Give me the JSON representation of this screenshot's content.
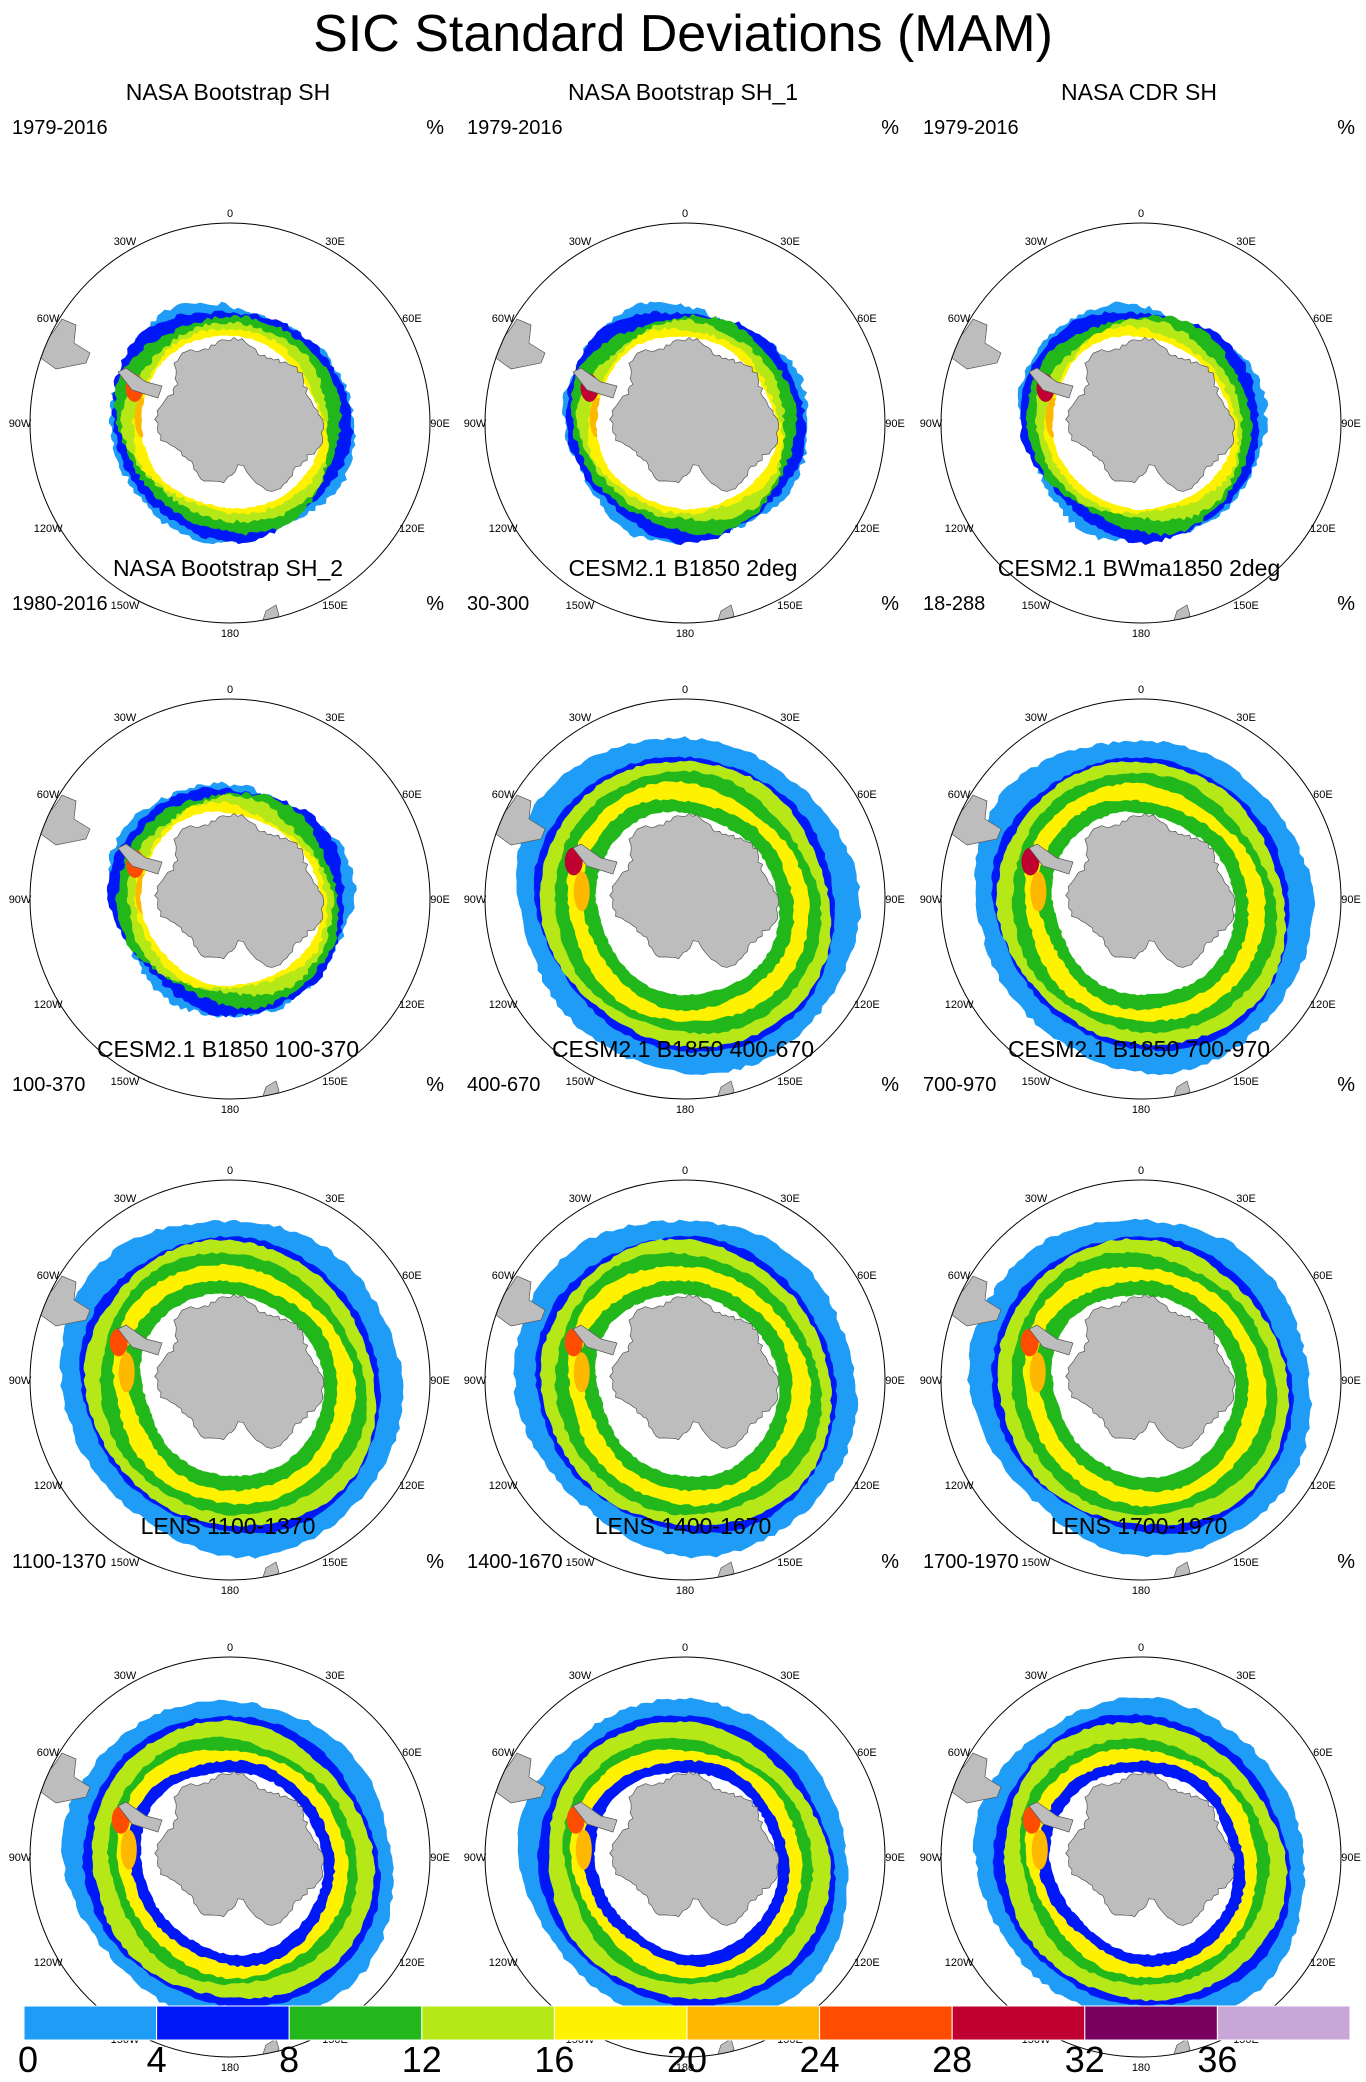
{
  "chart_data": {
    "type": "heatmap",
    "title": "SIC Standard Deviations (MAM)",
    "units": "%",
    "projection": "south polar stereographic",
    "longitude_labels": [
      "0",
      "30E",
      "60E",
      "90E",
      "120E",
      "150E",
      "180",
      "150W",
      "120W",
      "90W",
      "60W",
      "30W"
    ],
    "colorbar": {
      "ticks": [
        "0",
        "4",
        "8",
        "12",
        "16",
        "20",
        "24",
        "28",
        "32",
        "36"
      ],
      "bins": [
        {
          "from": 0,
          "to": 4,
          "color": "#1e9cf6"
        },
        {
          "from": 4,
          "to": 8,
          "color": "#0018f8"
        },
        {
          "from": 8,
          "to": 12,
          "color": "#22b81c"
        },
        {
          "from": 12,
          "to": 16,
          "color": "#b6e818"
        },
        {
          "from": 16,
          "to": 20,
          "color": "#fff200"
        },
        {
          "from": 20,
          "to": 24,
          "color": "#ffb800"
        },
        {
          "from": 24,
          "to": 28,
          "color": "#ff4c00"
        },
        {
          "from": 28,
          "to": 32,
          "color": "#c00030"
        },
        {
          "from": 32,
          "to": 36,
          "color": "#7a0060"
        },
        {
          "from": 36,
          "to": 40,
          "color": "#c8a6d8"
        }
      ]
    },
    "panels": [
      {
        "title": "NASA Bootstrap SH",
        "period": "1979-2016",
        "kind": "obs",
        "ext": 0.6,
        "peak": 24
      },
      {
        "title": "NASA Bootstrap SH_1",
        "period": "1979-2016",
        "kind": "obs",
        "ext": 0.6,
        "peak": 28
      },
      {
        "title": "NASA CDR SH",
        "period": "1979-2016",
        "kind": "obs",
        "ext": 0.6,
        "peak": 28
      },
      {
        "title": "NASA Bootstrap SH_2",
        "period": "1980-2016",
        "kind": "obs",
        "ext": 0.59,
        "peak": 24
      },
      {
        "title": "CESM2.1 B1850 2deg",
        "period": "30-300",
        "kind": "model",
        "ext": 0.83,
        "peak": 28
      },
      {
        "title": "CESM2.1 BWma1850 2deg",
        "period": "18-288",
        "kind": "model",
        "ext": 0.82,
        "peak": 28
      },
      {
        "title": "CESM2.1 B1850 100-370",
        "period": "100-370",
        "kind": "model",
        "ext": 0.83,
        "peak": 24
      },
      {
        "title": "CESM2.1 B1850 400-670",
        "period": "400-670",
        "kind": "model",
        "ext": 0.83,
        "peak": 24
      },
      {
        "title": "CESM2.1 B1850 700-970",
        "period": "700-970",
        "kind": "model",
        "ext": 0.83,
        "peak": 24
      },
      {
        "title": "LENS 1100-1370",
        "period": "1100-1370",
        "kind": "lens",
        "ext": 0.8,
        "peak": 24
      },
      {
        "title": "LENS 1400-1670",
        "period": "1400-1670",
        "kind": "lens",
        "ext": 0.8,
        "peak": 24
      },
      {
        "title": "LENS 1700-1970",
        "period": "1700-1970",
        "kind": "lens",
        "ext": 0.8,
        "peak": 24
      }
    ]
  }
}
